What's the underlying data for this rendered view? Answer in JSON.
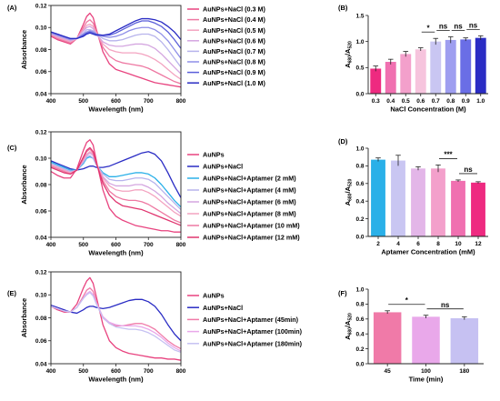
{
  "panels": [
    {
      "id": "A",
      "panel_label": "(A)",
      "chart_data": {
        "type": "line",
        "xlabel": "Wavelength (nm)",
        "ylabel": "Absorbance",
        "xlim": [
          400,
          800
        ],
        "ylim": [
          0.04,
          0.12
        ],
        "x_ticks": [
          "400",
          "500",
          "600",
          "700",
          "800"
        ],
        "y_ticks": [
          "0.04",
          "0.06",
          "0.08",
          "0.10",
          "0.12"
        ],
        "x": [
          400,
          420,
          440,
          460,
          480,
          500,
          510,
          520,
          530,
          540,
          560,
          580,
          600,
          620,
          640,
          660,
          680,
          700,
          720,
          740,
          760,
          780,
          800
        ],
        "series": [
          {
            "name": "AuNPs+NaCl (0.3 M)",
            "color": "#e8437f",
            "values": [
              0.092,
              0.089,
              0.087,
              0.085,
              0.09,
              0.103,
              0.11,
              0.113,
              0.109,
              0.098,
              0.078,
              0.067,
              0.062,
              0.06,
              0.058,
              0.056,
              0.054,
              0.052,
              0.05,
              0.049,
              0.048,
              0.047,
              0.046
            ]
          },
          {
            "name": "AuNPs+NaCl (0.4 M)",
            "color": "#ee78a2",
            "values": [
              0.093,
              0.09,
              0.088,
              0.086,
              0.09,
              0.1,
              0.105,
              0.107,
              0.104,
              0.096,
              0.082,
              0.074,
              0.07,
              0.068,
              0.067,
              0.066,
              0.065,
              0.063,
              0.06,
              0.057,
              0.054,
              0.051,
              0.049
            ]
          },
          {
            "name": "AuNPs+NaCl (0.5 M)",
            "color": "#f3a3c0",
            "values": [
              0.094,
              0.091,
              0.089,
              0.087,
              0.09,
              0.098,
              0.102,
              0.103,
              0.101,
              0.095,
              0.085,
              0.08,
              0.078,
              0.077,
              0.077,
              0.077,
              0.076,
              0.074,
              0.071,
              0.067,
              0.062,
              0.057,
              0.053
            ]
          },
          {
            "name": "AuNPs+NaCl (0.6 M)",
            "color": "#d4a6e0",
            "values": [
              0.094,
              0.092,
              0.09,
              0.088,
              0.09,
              0.097,
              0.1,
              0.101,
              0.099,
              0.094,
              0.087,
              0.084,
              0.083,
              0.083,
              0.084,
              0.085,
              0.085,
              0.084,
              0.081,
              0.076,
              0.07,
              0.064,
              0.058
            ]
          },
          {
            "name": "AuNPs+NaCl (0.7 M)",
            "color": "#b7b3ec",
            "values": [
              0.095,
              0.093,
              0.091,
              0.089,
              0.09,
              0.095,
              0.098,
              0.098,
              0.097,
              0.094,
              0.09,
              0.088,
              0.088,
              0.089,
              0.091,
              0.093,
              0.094,
              0.094,
              0.092,
              0.087,
              0.08,
              0.072,
              0.064
            ]
          },
          {
            "name": "AuNPs+NaCl (0.8 M)",
            "color": "#8f8fe8",
            "values": [
              0.095,
              0.093,
              0.091,
              0.089,
              0.09,
              0.094,
              0.096,
              0.097,
              0.096,
              0.094,
              0.092,
              0.091,
              0.092,
              0.094,
              0.097,
              0.099,
              0.1,
              0.1,
              0.098,
              0.094,
              0.088,
              0.08,
              0.072
            ]
          },
          {
            "name": "AuNPs+NaCl (0.9 M)",
            "color": "#5a5ed9",
            "values": [
              0.096,
              0.094,
              0.092,
              0.09,
              0.09,
              0.093,
              0.095,
              0.096,
              0.095,
              0.094,
              0.093,
              0.093,
              0.095,
              0.098,
              0.101,
              0.104,
              0.106,
              0.106,
              0.104,
              0.101,
              0.096,
              0.089,
              0.081
            ]
          },
          {
            "name": "AuNPs+NaCl (1.0 M)",
            "color": "#2a2cc4",
            "values": [
              0.096,
              0.094,
              0.092,
              0.09,
              0.09,
              0.092,
              0.094,
              0.095,
              0.094,
              0.093,
              0.093,
              0.094,
              0.097,
              0.1,
              0.103,
              0.106,
              0.108,
              0.108,
              0.107,
              0.105,
              0.101,
              0.096,
              0.089
            ]
          }
        ]
      }
    },
    {
      "id": "B",
      "panel_label": "(B)",
      "chart_data": {
        "type": "bar",
        "xlabel": "NaCl Concentration (M)",
        "ylabel_main": "A",
        "ylabel_sub1": "680",
        "ylabel_slash": "/A",
        "ylabel_sub2": "520",
        "ylim": [
          0,
          1.5
        ],
        "y_ticks": [
          "0.0",
          "0.5",
          "1.0",
          "1.5"
        ],
        "categories": [
          "0.3",
          "0.4",
          "0.5",
          "0.6",
          "0.7",
          "0.8",
          "0.9",
          "1.0"
        ],
        "values": [
          0.48,
          0.61,
          0.76,
          0.85,
          1.0,
          1.03,
          1.04,
          1.07
        ],
        "errors": [
          0.05,
          0.05,
          0.05,
          0.03,
          0.06,
          0.06,
          0.03,
          0.04
        ],
        "colors": [
          "#ee2a80",
          "#f070b0",
          "#f3a0cb",
          "#f6c4dd",
          "#c9c6f2",
          "#9e9ef0",
          "#6a6ee6",
          "#2a2cc4"
        ],
        "significance": [
          {
            "from": 3,
            "to": 4,
            "label": "*"
          },
          {
            "from": 4,
            "to": 5,
            "label": "ns"
          },
          {
            "from": 5,
            "to": 6,
            "label": "ns"
          },
          {
            "from": 6,
            "to": 7,
            "label": "ns"
          }
        ]
      }
    },
    {
      "id": "C",
      "panel_label": "(C)",
      "chart_data": {
        "type": "line",
        "xlabel": "Wavelength (nm)",
        "ylabel": "Absorbance",
        "xlim": [
          400,
          800
        ],
        "ylim": [
          0.04,
          0.12
        ],
        "x_ticks": [
          "400",
          "500",
          "600",
          "700",
          "800"
        ],
        "y_ticks": [
          "0.04",
          "0.06",
          "0.08",
          "0.10",
          "0.12"
        ],
        "x": [
          400,
          420,
          440,
          460,
          480,
          500,
          510,
          520,
          530,
          540,
          560,
          580,
          600,
          620,
          640,
          660,
          680,
          700,
          720,
          740,
          760,
          780,
          800
        ],
        "series": [
          {
            "name": "AuNPs",
            "color": "#e8437f",
            "values": [
              0.09,
              0.087,
              0.085,
              0.085,
              0.092,
              0.106,
              0.112,
              0.114,
              0.11,
              0.098,
              0.076,
              0.062,
              0.056,
              0.053,
              0.051,
              0.049,
              0.048,
              0.047,
              0.046,
              0.045,
              0.045,
              0.044,
              0.044
            ]
          },
          {
            "name": "AuNPs+NaCl",
            "color": "#2a2cc4",
            "values": [
              0.098,
              0.096,
              0.094,
              0.092,
              0.091,
              0.092,
              0.093,
              0.094,
              0.094,
              0.093,
              0.093,
              0.094,
              0.096,
              0.098,
              0.1,
              0.102,
              0.104,
              0.105,
              0.103,
              0.098,
              0.089,
              0.079,
              0.07
            ]
          },
          {
            "name": "AuNPs+NaCl+Aptamer (2 mM)",
            "color": "#2ab0e8",
            "values": [
              0.097,
              0.095,
              0.093,
              0.091,
              0.091,
              0.096,
              0.1,
              0.101,
              0.1,
              0.095,
              0.089,
              0.086,
              0.086,
              0.087,
              0.088,
              0.089,
              0.089,
              0.088,
              0.085,
              0.08,
              0.074,
              0.068,
              0.063
            ]
          },
          {
            "name": "AuNPs+NaCl+Aptamer (4 mM)",
            "color": "#b7b3ec",
            "values": [
              0.096,
              0.094,
              0.092,
              0.09,
              0.091,
              0.097,
              0.101,
              0.102,
              0.1,
              0.095,
              0.088,
              0.084,
              0.083,
              0.083,
              0.084,
              0.085,
              0.085,
              0.084,
              0.081,
              0.076,
              0.071,
              0.066,
              0.061
            ]
          },
          {
            "name": "AuNPs+NaCl+Aptamer (6 mM)",
            "color": "#d4a6e0",
            "values": [
              0.095,
              0.093,
              0.091,
              0.089,
              0.091,
              0.098,
              0.102,
              0.104,
              0.102,
              0.096,
              0.086,
              0.081,
              0.079,
              0.079,
              0.079,
              0.08,
              0.08,
              0.078,
              0.075,
              0.071,
              0.066,
              0.062,
              0.058
            ]
          },
          {
            "name": "AuNPs+NaCl+Aptamer (8 mM)",
            "color": "#f3a3c0",
            "values": [
              0.095,
              0.093,
              0.091,
              0.089,
              0.091,
              0.099,
              0.103,
              0.105,
              0.103,
              0.096,
              0.085,
              0.079,
              0.076,
              0.075,
              0.075,
              0.076,
              0.076,
              0.074,
              0.071,
              0.067,
              0.063,
              0.059,
              0.056
            ]
          },
          {
            "name": "AuNPs+NaCl+Aptamer (10 mM)",
            "color": "#ee78a2",
            "values": [
              0.094,
              0.092,
              0.09,
              0.088,
              0.091,
              0.1,
              0.105,
              0.107,
              0.104,
              0.096,
              0.083,
              0.075,
              0.071,
              0.069,
              0.068,
              0.068,
              0.067,
              0.065,
              0.062,
              0.059,
              0.056,
              0.053,
              0.051
            ]
          },
          {
            "name": "AuNPs+NaCl+Aptamer (12 mM)",
            "color": "#e0356f",
            "values": [
              0.093,
              0.091,
              0.089,
              0.088,
              0.091,
              0.101,
              0.106,
              0.108,
              0.105,
              0.096,
              0.081,
              0.072,
              0.067,
              0.064,
              0.063,
              0.062,
              0.061,
              0.059,
              0.057,
              0.055,
              0.053,
              0.051,
              0.049
            ]
          }
        ]
      }
    },
    {
      "id": "D",
      "panel_label": "(D)",
      "chart_data": {
        "type": "bar",
        "xlabel": "Aptamer Concentration (mM)",
        "ylabel_main": "A",
        "ylabel_sub1": "680",
        "ylabel_slash": "/A",
        "ylabel_sub2": "520",
        "ylim": [
          0,
          1.0
        ],
        "y_ticks": [
          "0.0",
          "0.2",
          "0.4",
          "0.6",
          "0.8",
          "1.0"
        ],
        "categories": [
          "2",
          "4",
          "6",
          "8",
          "10",
          "12"
        ],
        "values": [
          0.87,
          0.86,
          0.77,
          0.77,
          0.63,
          0.61
        ],
        "errors": [
          0.02,
          0.06,
          0.02,
          0.04,
          0.01,
          0.01
        ],
        "colors": [
          "#2ab0e8",
          "#c9c6f2",
          "#e3b6e8",
          "#f3a0cb",
          "#f070b0",
          "#ee2a80"
        ],
        "significance": [
          {
            "from": 3,
            "to": 4,
            "label": "***"
          },
          {
            "from": 4,
            "to": 5,
            "label": "ns"
          }
        ]
      }
    },
    {
      "id": "E",
      "panel_label": "(E)",
      "chart_data": {
        "type": "line",
        "xlabel": "Wavelength (nm)",
        "ylabel": "Absorbance",
        "xlim": [
          400,
          800
        ],
        "ylim": [
          0.04,
          0.12
        ],
        "x_ticks": [
          "400",
          "500",
          "600",
          "700",
          "800"
        ],
        "y_ticks": [
          "0.04",
          "0.06",
          "0.08",
          "0.10",
          "0.12"
        ],
        "x": [
          400,
          420,
          440,
          460,
          480,
          500,
          510,
          520,
          530,
          540,
          560,
          580,
          600,
          620,
          640,
          660,
          680,
          700,
          720,
          740,
          760,
          780,
          800
        ],
        "series": [
          {
            "name": "AuNPs",
            "color": "#e8437f",
            "values": [
              0.09,
              0.087,
              0.085,
              0.085,
              0.092,
              0.106,
              0.112,
              0.115,
              0.11,
              0.098,
              0.074,
              0.06,
              0.054,
              0.051,
              0.049,
              0.048,
              0.047,
              0.046,
              0.045,
              0.045,
              0.044,
              0.044,
              0.043
            ]
          },
          {
            "name": "AuNPs+NaCl",
            "color": "#2a2cc4",
            "values": [
              0.091,
              0.089,
              0.087,
              0.085,
              0.084,
              0.087,
              0.089,
              0.09,
              0.09,
              0.089,
              0.088,
              0.089,
              0.091,
              0.093,
              0.095,
              0.096,
              0.096,
              0.094,
              0.09,
              0.083,
              0.074,
              0.066,
              0.06
            ]
          },
          {
            "name": "AuNPs+NaCl+Aptamer (45min)",
            "color": "#f07aa8",
            "values": [
              0.09,
              0.088,
              0.086,
              0.085,
              0.089,
              0.099,
              0.104,
              0.106,
              0.103,
              0.094,
              0.08,
              0.075,
              0.073,
              0.073,
              0.074,
              0.075,
              0.075,
              0.073,
              0.07,
              0.065,
              0.06,
              0.056,
              0.053
            ]
          },
          {
            "name": "AuNPs+NaCl+Aptamer (100min)",
            "color": "#e9a8ea",
            "values": [
              0.09,
              0.088,
              0.086,
              0.085,
              0.089,
              0.097,
              0.101,
              0.103,
              0.1,
              0.093,
              0.081,
              0.076,
              0.074,
              0.073,
              0.073,
              0.073,
              0.072,
              0.07,
              0.067,
              0.063,
              0.058,
              0.054,
              0.051
            ]
          },
          {
            "name": "AuNPs+NaCl+Aptamer (180min)",
            "color": "#c6c1f2",
            "values": [
              0.09,
              0.088,
              0.086,
              0.085,
              0.089,
              0.097,
              0.1,
              0.102,
              0.099,
              0.092,
              0.08,
              0.075,
              0.072,
              0.071,
              0.07,
              0.07,
              0.069,
              0.067,
              0.064,
              0.06,
              0.056,
              0.052,
              0.05
            ]
          }
        ]
      }
    },
    {
      "id": "F",
      "panel_label": "(F)",
      "chart_data": {
        "type": "bar",
        "xlabel": "Time (min)",
        "ylabel_main": "A",
        "ylabel_sub1": "680",
        "ylabel_slash": "/A",
        "ylabel_sub2": "520",
        "ylim": [
          0,
          1.0
        ],
        "y_ticks": [
          "0.0",
          "0.2",
          "0.4",
          "0.6",
          "0.8",
          "1.0"
        ],
        "categories": [
          "45",
          "100",
          "180"
        ],
        "values": [
          0.69,
          0.63,
          0.61
        ],
        "errors": [
          0.02,
          0.02,
          0.02
        ],
        "colors": [
          "#f07aa8",
          "#e9a8ea",
          "#c6c1f2"
        ],
        "significance": [
          {
            "from": 0,
            "to": 1,
            "label": "*"
          },
          {
            "from": 1,
            "to": 2,
            "label": "ns"
          }
        ]
      }
    }
  ]
}
